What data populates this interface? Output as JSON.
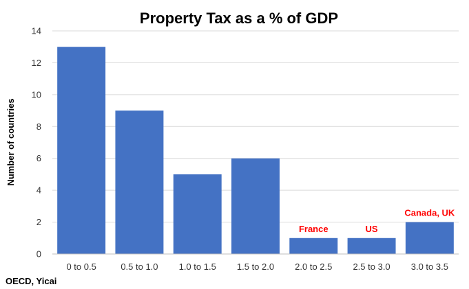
{
  "chart_data": {
    "type": "bar",
    "title": "Property Tax as a % of GDP",
    "xlabel": "",
    "ylabel": "Number of countries",
    "categories": [
      "0 to 0.5",
      "0.5 to 1.0",
      "1.0 to 1.5",
      "1.5 to 2.0",
      "2.0 to 2.5",
      "2.5 to 3.0",
      "3.0 to 3.5"
    ],
    "values": [
      13,
      9,
      5,
      6,
      1,
      1,
      2
    ],
    "ylim": [
      0,
      14
    ],
    "yticks": [
      0,
      2,
      4,
      6,
      8,
      10,
      12,
      14
    ],
    "grid": true,
    "legend": "none",
    "bar_color": "#4472c4",
    "annotations": [
      {
        "category": "2.0 to 2.5",
        "text": "France"
      },
      {
        "category": "2.5 to 3.0",
        "text": "US"
      },
      {
        "category": "3.0 to 3.5",
        "text": "Canada, UK"
      }
    ],
    "annotation_color": "#ff0000",
    "source": "OECD, Yicai"
  }
}
